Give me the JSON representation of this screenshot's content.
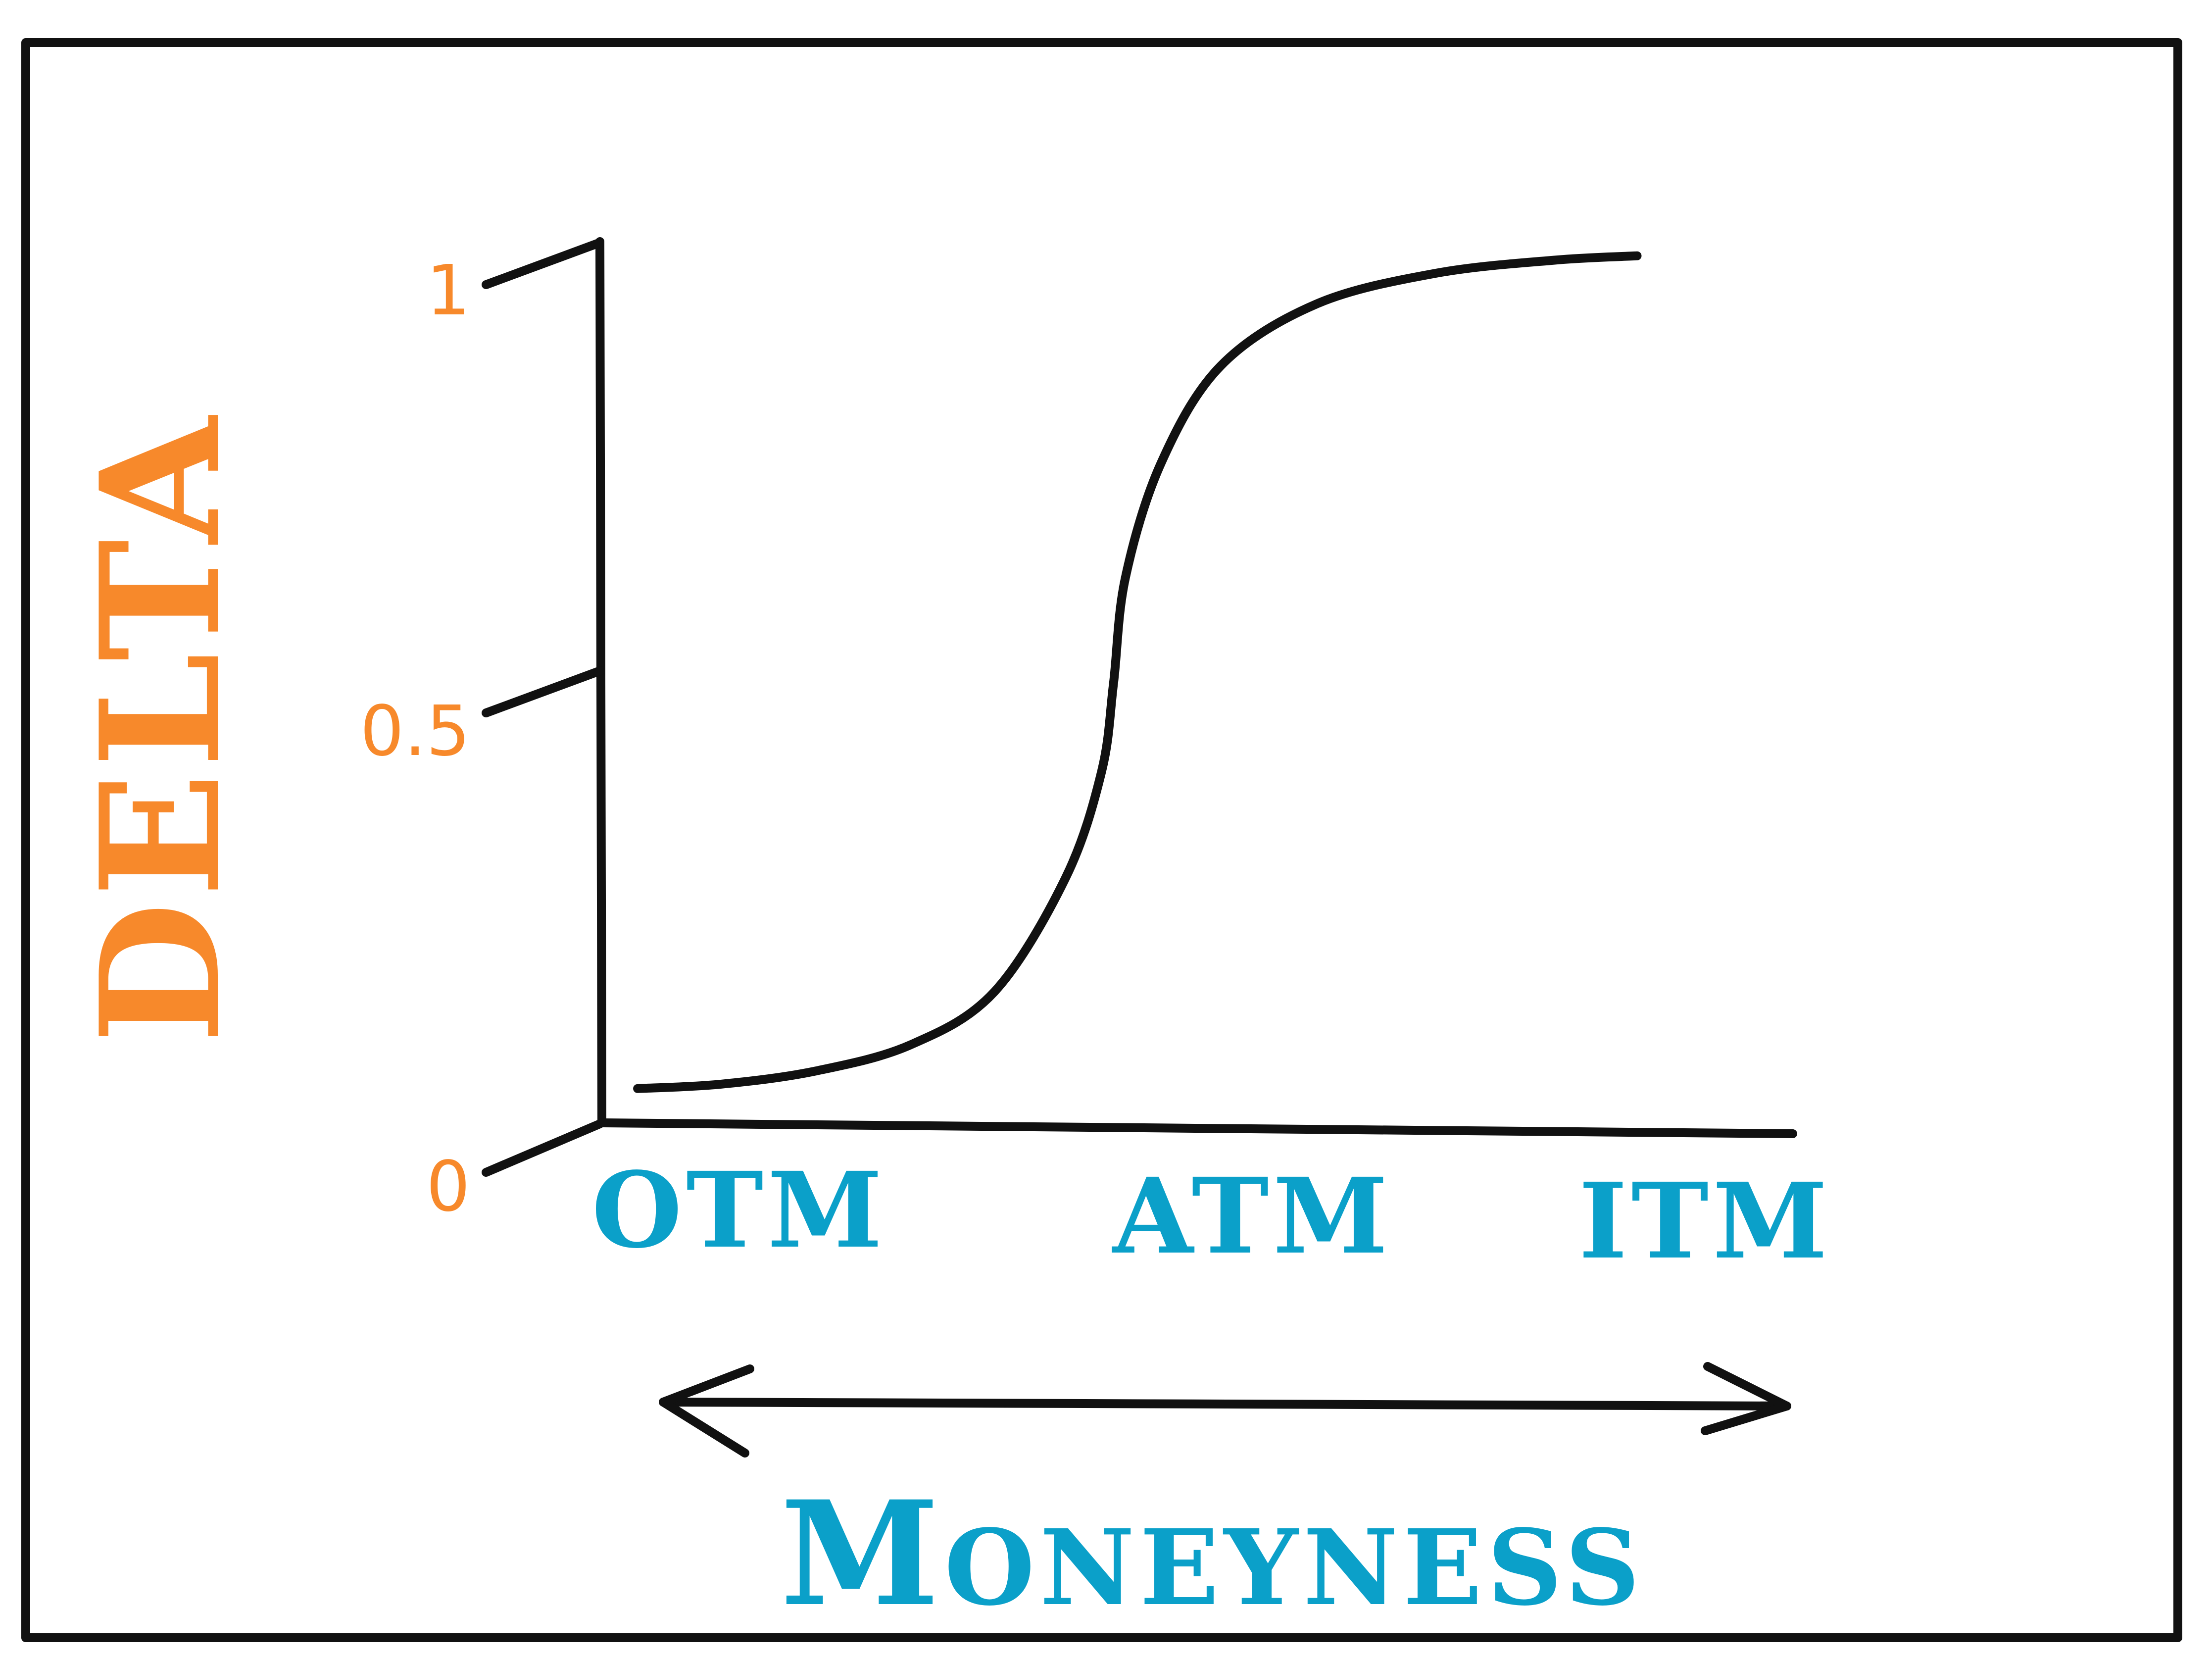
{
  "colors": {
    "frame": "#111111",
    "axis": "#111111",
    "curve": "#111111",
    "delta_orange": "#F7892B",
    "moneyness_blue": "#0BA0C9"
  },
  "chart_data": {
    "type": "line",
    "title": "",
    "ylabel": "DELTA",
    "xlabel": "Moneyness",
    "categories": [
      "OTM",
      "ATM",
      "ITM"
    ],
    "yticks": [
      "1",
      "0.5",
      "0"
    ],
    "ylim": [
      0,
      1
    ],
    "xlim": [
      0,
      1
    ],
    "grid": false,
    "legend": "none",
    "series": [
      {
        "values": [
          {
            "x": 0.03,
            "y": 0.04
          },
          {
            "x": 0.1,
            "y": 0.045
          },
          {
            "x": 0.18,
            "y": 0.06
          },
          {
            "x": 0.26,
            "y": 0.09
          },
          {
            "x": 0.33,
            "y": 0.15
          },
          {
            "x": 0.39,
            "y": 0.28
          },
          {
            "x": 0.42,
            "y": 0.4
          },
          {
            "x": 0.43,
            "y": 0.5
          },
          {
            "x": 0.44,
            "y": 0.62
          },
          {
            "x": 0.47,
            "y": 0.75
          },
          {
            "x": 0.52,
            "y": 0.86
          },
          {
            "x": 0.6,
            "y": 0.93
          },
          {
            "x": 0.7,
            "y": 0.965
          },
          {
            "x": 0.8,
            "y": 0.98
          },
          {
            "x": 0.87,
            "y": 0.985
          }
        ]
      }
    ]
  }
}
